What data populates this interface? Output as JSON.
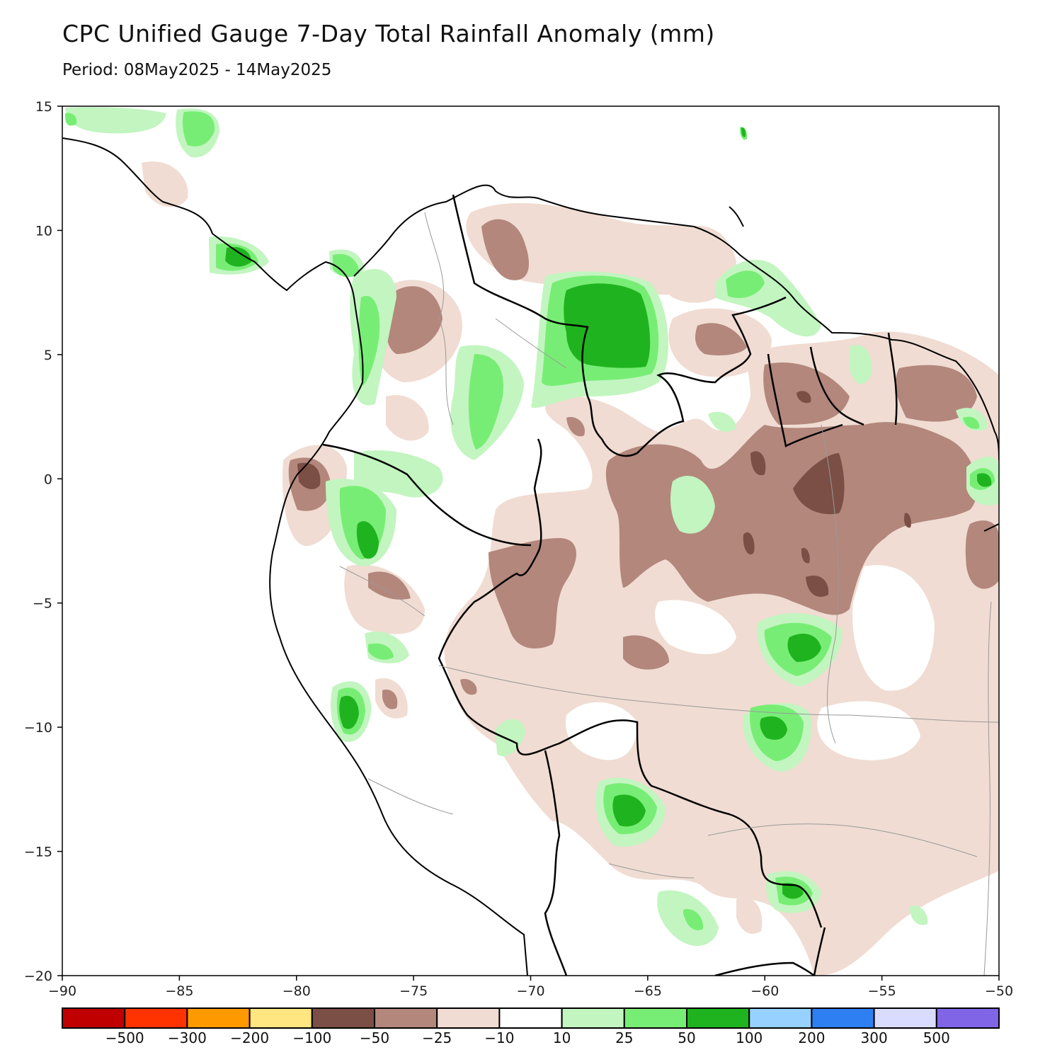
{
  "title": "CPC Unified Gauge 7-Day Total Rainfall Anomaly (mm)",
  "subtitle": "Period: 08May2025 - 14May2025",
  "map": {
    "lon_range": [
      -90,
      -50
    ],
    "lat_range": [
      -20,
      15
    ],
    "x_ticks": [
      {
        "value": -90,
        "label": "−90"
      },
      {
        "value": -85,
        "label": "−85"
      },
      {
        "value": -80,
        "label": "−80"
      },
      {
        "value": -75,
        "label": "−75"
      },
      {
        "value": -70,
        "label": "−70"
      },
      {
        "value": -65,
        "label": "−65"
      },
      {
        "value": -60,
        "label": "−60"
      },
      {
        "value": -55,
        "label": "−55"
      },
      {
        "value": -50,
        "label": "−50"
      }
    ],
    "y_ticks": [
      {
        "value": 15,
        "label": "15"
      },
      {
        "value": 10,
        "label": "10"
      },
      {
        "value": 5,
        "label": "5"
      },
      {
        "value": 0,
        "label": "0"
      },
      {
        "value": -5,
        "label": "−5"
      },
      {
        "value": -10,
        "label": "−10"
      },
      {
        "value": -15,
        "label": "−15"
      },
      {
        "value": -20,
        "label": "−20"
      }
    ]
  },
  "colorbar": {
    "colors": [
      "#c00000",
      "#ff3300",
      "#ff9900",
      "#ffe680",
      "#7b4f45",
      "#b3877c",
      "#f0dcd2",
      "#ffffff",
      "#c2f5c0",
      "#78ed75",
      "#1fb41f",
      "#97d1ff",
      "#2e7ff2",
      "#dadcff",
      "#8066e6"
    ],
    "labels": [
      "−500",
      "−300",
      "−200",
      "−100",
      "−50",
      "−25",
      "−10",
      "10",
      "25",
      "50",
      "100",
      "200",
      "300",
      "500"
    ]
  }
}
